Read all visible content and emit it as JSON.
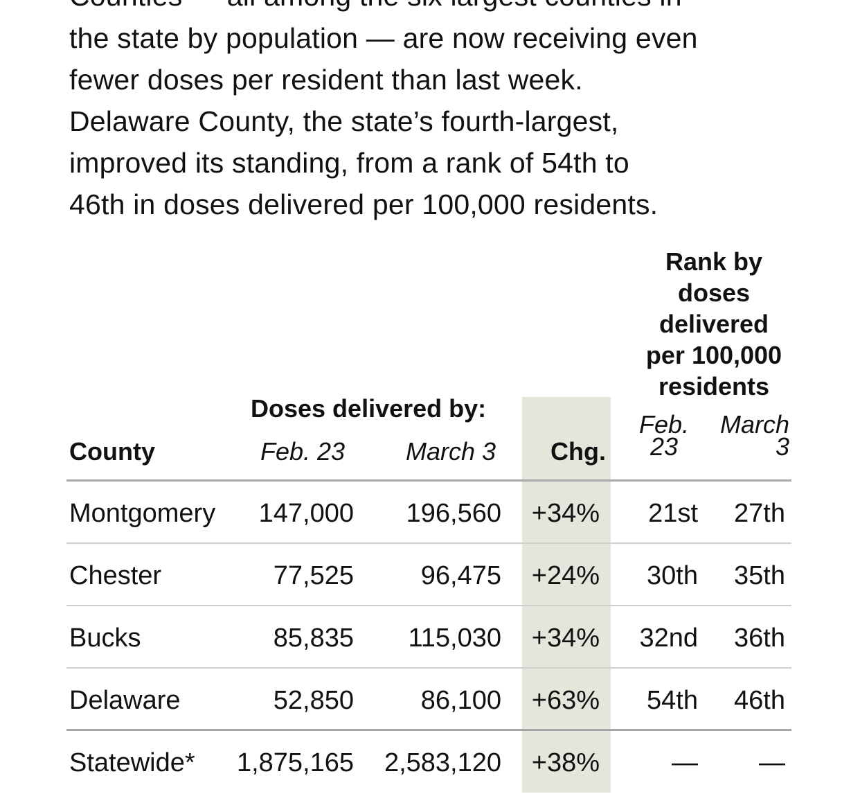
{
  "intro": {
    "lines": [
      "Counties — all among the six largest counties in",
      "the state by population — are now receiving even",
      "fewer doses per resident than last week.",
      "Delaware County, the state’s fourth-largest,",
      "improved its standing, from a rank of 54th to",
      "46th in doses delivered per 100,000 residents."
    ]
  },
  "table": {
    "headers": {
      "county": "County",
      "doses_group": "Doses delivered by:",
      "feb": "Feb. 23",
      "mar": "March 3",
      "chg": "Chg.",
      "rank_group_lines": [
        "Rank by",
        "doses",
        "delivered",
        "per 100,000",
        "residents"
      ],
      "rank_feb_lines": [
        "Feb.",
        "23"
      ],
      "rank_mar_lines": [
        "March",
        "3"
      ]
    },
    "rows": [
      {
        "county": "Montgomery",
        "feb": "147,000",
        "mar": "196,560",
        "chg": "+34%",
        "rank_feb": "21st",
        "rank_mar": "27th"
      },
      {
        "county": "Chester",
        "feb": "77,525",
        "mar": "96,475",
        "chg": "+24%",
        "rank_feb": "30th",
        "rank_mar": "35th"
      },
      {
        "county": "Bucks",
        "feb": "85,835",
        "mar": "115,030",
        "chg": "+34%",
        "rank_feb": "32nd",
        "rank_mar": "36th"
      },
      {
        "county": "Delaware",
        "feb": "52,850",
        "mar": "86,100",
        "chg": "+63%",
        "rank_feb": "54th",
        "rank_mar": "46th"
      },
      {
        "county": "Statewide*",
        "feb": "1,875,165",
        "mar": "2,583,120",
        "chg": "+38%",
        "rank_feb": "—",
        "rank_mar": "—"
      }
    ],
    "colors": {
      "change_column_shade": "#e6e5dc",
      "heavy_rule": "#a8a8a8",
      "light_rule": "#cfcfcf"
    }
  }
}
